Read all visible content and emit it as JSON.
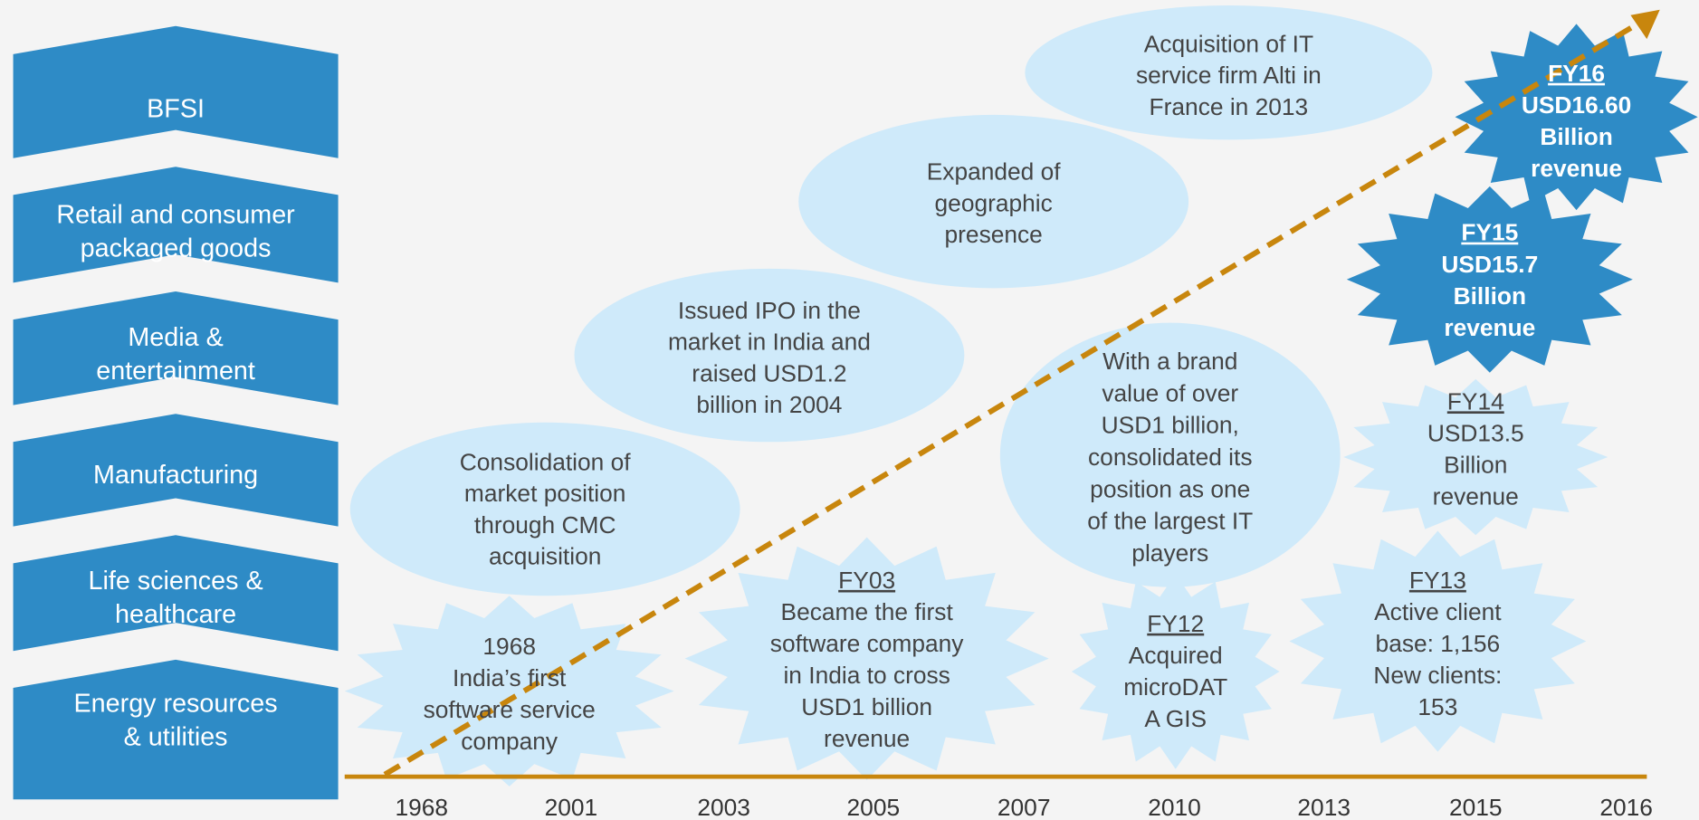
{
  "sectors": [
    "BFSI",
    "Retail and consumer packaged goods",
    "Media & entertainment",
    "Manufacturing",
    "Life sciences & healthcare",
    "Energy resources & utilities"
  ],
  "timeline": {
    "years": [
      "1968",
      "2001",
      "2003",
      "2005",
      "2007",
      "2010",
      "2013",
      "2015",
      "2016"
    ]
  },
  "ellipses": [
    {
      "lines": [
        "Consolidation of",
        "market position",
        "through CMC",
        "acquisition"
      ]
    },
    {
      "lines": [
        "Issued IPO in the",
        "market in India and",
        "raised USD1.2",
        "billion in 2004"
      ]
    },
    {
      "lines": [
        "Expanded of",
        "geographic",
        "presence"
      ]
    },
    {
      "lines": [
        "Acquisition of IT",
        "service firm Alti in",
        "France in 2013"
      ]
    },
    {
      "lines": [
        "With a brand",
        "value of over",
        "USD1 billion,",
        "consolidated its",
        "position as one",
        "of the largest IT",
        "players"
      ]
    }
  ],
  "stars": [
    {
      "heading": "1968",
      "lines": [
        "India’s first",
        "software service",
        "company"
      ]
    },
    {
      "heading": "FY03",
      "lines": [
        "Became the first",
        "software company",
        "in India to cross",
        "USD1 billion",
        "revenue"
      ]
    },
    {
      "heading": "FY12",
      "lines": [
        "Acquired",
        "microDAT",
        "A GIS"
      ]
    },
    {
      "heading": "FY13",
      "lines": [
        "Active client",
        "base: 1,156",
        "New clients:",
        "153"
      ]
    },
    {
      "heading": "FY14",
      "lines": [
        "USD13.5",
        "Billion",
        "revenue"
      ]
    },
    {
      "heading": "FY15",
      "lines": [
        "USD15.7",
        "Billion",
        "revenue"
      ]
    },
    {
      "heading": "FY16",
      "lines": [
        "USD16.60",
        "Billion",
        "revenue"
      ]
    }
  ]
}
